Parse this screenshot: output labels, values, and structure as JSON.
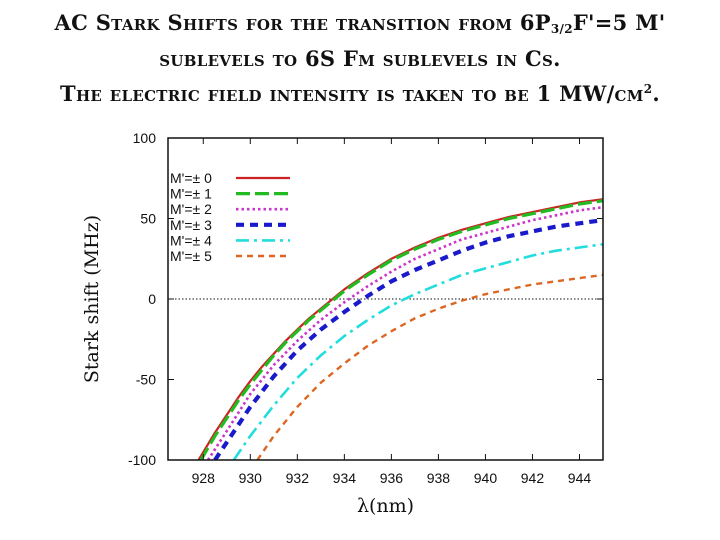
{
  "slide": {
    "title_line1_a": "AC Stark Shifts for the transition from 6P",
    "title_line1_sub": "3/2",
    "title_line1_b": "F'=5 M'",
    "title_line2": "sublevels to 6S Fm sublevels in Cs.",
    "title_line3_a": "The electric field intensity is taken to be 1 MW/cm",
    "title_line3_sup": "2",
    "title_line3_b": "."
  },
  "chart_data": {
    "type": "line",
    "xlabel": "λ(nm)",
    "ylabel": "Stark shift (MHz)",
    "xlim": [
      926.5,
      945
    ],
    "ylim": [
      -100,
      100
    ],
    "xticks": [
      928,
      930,
      932,
      934,
      936,
      938,
      940,
      942,
      944
    ],
    "yticks": [
      -100,
      -50,
      0,
      50,
      100
    ],
    "xtick_labels": [
      "928",
      "930",
      "932",
      "934",
      "936",
      "938",
      "940",
      "942",
      "944"
    ],
    "ytick_labels": [
      "-100",
      "-50",
      "0",
      "50",
      "100"
    ],
    "zero_line": true,
    "legend_position": "top-left",
    "series": [
      {
        "name": "M'=± 0",
        "color": "#cc2222",
        "dash": "solid",
        "x": [
          927.8,
          928.5,
          929,
          929.5,
          930,
          930.5,
          931,
          931.5,
          932,
          932.5,
          933,
          933.5,
          934,
          935,
          936,
          937,
          938,
          939,
          940,
          941,
          942,
          943,
          944,
          945
        ],
        "y": [
          -100,
          -83,
          -72,
          -61,
          -51,
          -42,
          -34,
          -26,
          -19,
          -12,
          -6,
          0,
          6,
          16,
          25,
          32,
          38,
          43,
          47,
          51,
          54,
          57,
          60,
          62
        ]
      },
      {
        "name": "M'=± 1",
        "color": "#22bb22",
        "dash": "dash-long",
        "x": [
          927.9,
          928.5,
          929,
          929.5,
          930,
          930.5,
          931,
          931.5,
          932,
          932.5,
          933,
          933.5,
          934,
          935,
          936,
          937,
          938,
          939,
          940,
          941,
          942,
          943,
          944,
          945
        ],
        "y": [
          -100,
          -85,
          -74,
          -63,
          -53,
          -44,
          -35,
          -27,
          -20,
          -13,
          -7,
          -1,
          5,
          15,
          24,
          31,
          37,
          42,
          46,
          50,
          53,
          56,
          59,
          61
        ]
      },
      {
        "name": "M'=± 2",
        "color": "#cc33cc",
        "dash": "dot",
        "x": [
          928.2,
          929,
          930,
          931,
          932,
          933,
          934,
          935,
          936,
          937,
          938,
          939,
          940,
          941,
          942,
          943,
          944,
          945
        ],
        "y": [
          -100,
          -82,
          -59,
          -41,
          -26,
          -13,
          -2,
          8,
          17,
          25,
          31,
          37,
          41,
          45,
          49,
          52,
          55,
          57
        ]
      },
      {
        "name": "M'=± 3",
        "color": "#1a1acc",
        "dash": "dash-thick",
        "x": [
          928.5,
          929,
          930,
          931,
          932,
          933,
          934,
          935,
          936,
          937,
          938,
          939,
          940,
          941,
          942,
          943,
          944,
          945
        ],
        "y": [
          -100,
          -89,
          -67,
          -48,
          -32,
          -19,
          -8,
          2,
          11,
          18,
          24,
          30,
          35,
          39,
          42,
          45,
          47,
          49
        ]
      },
      {
        "name": "M'=± 4",
        "color": "#22dddd",
        "dash": "dash-dot",
        "x": [
          929.3,
          930,
          931,
          932,
          933,
          934,
          935,
          936,
          937,
          938,
          939,
          940,
          941,
          942,
          943,
          944,
          945
        ],
        "y": [
          -100,
          -85,
          -66,
          -49,
          -35,
          -23,
          -13,
          -4,
          3,
          9,
          15,
          19,
          23,
          27,
          30,
          32,
          34
        ]
      },
      {
        "name": "M'=± 5",
        "color": "#dd6622",
        "dash": "dash-short",
        "x": [
          930.3,
          931,
          932,
          933,
          934,
          935,
          936,
          937,
          938,
          939,
          940,
          941,
          942,
          943,
          944,
          945
        ],
        "y": [
          -100,
          -85,
          -67,
          -52,
          -40,
          -29,
          -20,
          -12,
          -6,
          -1,
          3,
          6,
          9,
          11,
          13,
          15
        ]
      }
    ]
  }
}
